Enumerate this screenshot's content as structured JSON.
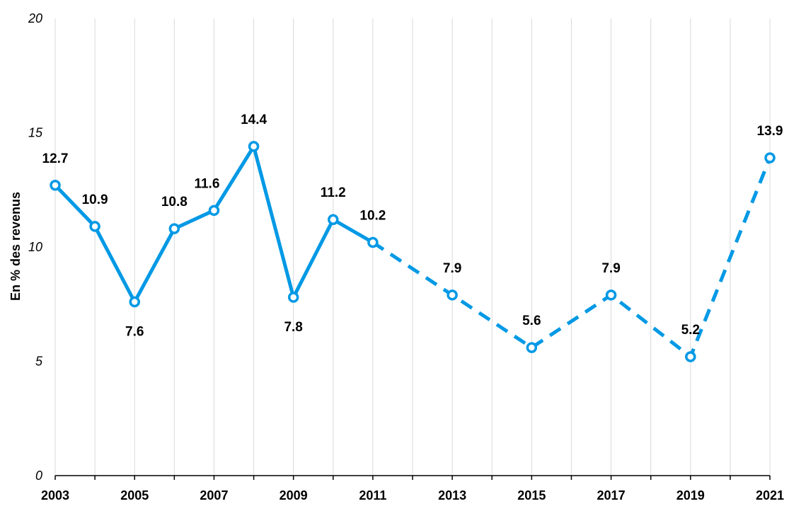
{
  "chart_data": {
    "type": "line",
    "xlabel": "",
    "ylabel": "En % des revenus",
    "ylim": [
      0,
      20
    ],
    "yticks": [
      0,
      5,
      10,
      15,
      20
    ],
    "xlim": [
      2003,
      2021
    ],
    "xticks": [
      2003,
      2005,
      2007,
      2009,
      2011,
      2013,
      2015,
      2017,
      2019,
      2021
    ],
    "grid": "vertical",
    "series_color": "#0099e5",
    "points": [
      {
        "x": 2003,
        "y": 12.7,
        "label": "12.7",
        "label_pos": "above",
        "segment_in": "solid"
      },
      {
        "x": 2004,
        "y": 10.9,
        "label": "10.9",
        "label_pos": "above",
        "segment_in": "solid"
      },
      {
        "x": 2005,
        "y": 7.6,
        "label": "7.6",
        "label_pos": "below",
        "segment_in": "solid"
      },
      {
        "x": 2006,
        "y": 10.8,
        "label": "10.8",
        "label_pos": "above",
        "segment_in": "solid"
      },
      {
        "x": 2007,
        "y": 11.6,
        "label": "11.6",
        "label_pos": "above",
        "segment_in": "solid"
      },
      {
        "x": 2008,
        "y": 14.4,
        "label": "14.4",
        "label_pos": "above",
        "segment_in": "solid"
      },
      {
        "x": 2009,
        "y": 7.8,
        "label": "7.8",
        "label_pos": "below",
        "segment_in": "solid"
      },
      {
        "x": 2010,
        "y": 11.2,
        "label": "11.2",
        "label_pos": "above",
        "segment_in": "solid"
      },
      {
        "x": 2011,
        "y": 10.2,
        "label": "10.2",
        "label_pos": "above",
        "segment_in": "solid"
      },
      {
        "x": 2013,
        "y": 7.9,
        "label": "7.9",
        "label_pos": "above",
        "segment_in": "dashed"
      },
      {
        "x": 2015,
        "y": 5.6,
        "label": "5.6",
        "label_pos": "above",
        "segment_in": "dashed"
      },
      {
        "x": 2017,
        "y": 7.9,
        "label": "7.9",
        "label_pos": "above",
        "segment_in": "dashed"
      },
      {
        "x": 2019,
        "y": 5.2,
        "label": "5.2",
        "label_pos": "above",
        "segment_in": "dashed"
      },
      {
        "x": 2021,
        "y": 13.9,
        "label": "13.9",
        "label_pos": "above",
        "segment_in": "dashed"
      }
    ]
  }
}
